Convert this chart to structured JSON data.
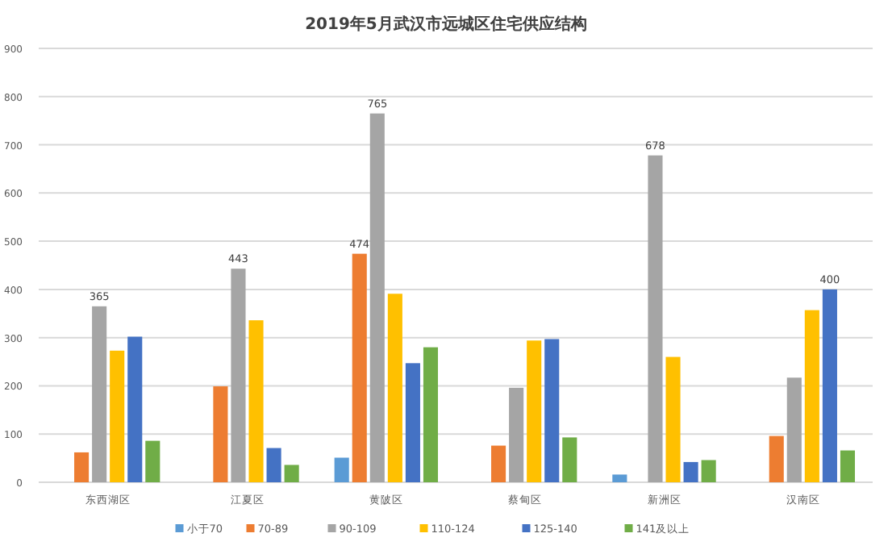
{
  "chart_data": {
    "type": "bar",
    "title": "2019年5月武汉市远城区住宅供应结构",
    "categories": [
      "东西湖区",
      "江夏区",
      "黄陂区",
      "蔡甸区",
      "新洲区",
      "汉南区"
    ],
    "series": [
      {
        "name": "小于70",
        "color": "#5b9bd5",
        "values": [
          null,
          null,
          51,
          null,
          16,
          null
        ]
      },
      {
        "name": "70-89",
        "color": "#ed7d31",
        "values": [
          62,
          199,
          474,
          76,
          null,
          96
        ],
        "value_labels": [
          null,
          null,
          "474",
          null,
          null,
          null
        ]
      },
      {
        "name": "90-109",
        "color": "#a5a5a5",
        "values": [
          365,
          443,
          765,
          196,
          678,
          217
        ],
        "value_labels": [
          "365",
          "443",
          "765",
          null,
          "678",
          null
        ]
      },
      {
        "name": "110-124",
        "color": "#ffc000",
        "values": [
          273,
          336,
          391,
          294,
          260,
          357
        ]
      },
      {
        "name": "125-140",
        "color": "#4472c4",
        "values": [
          302,
          71,
          247,
          297,
          42,
          400
        ],
        "value_labels": [
          null,
          null,
          null,
          null,
          null,
          "400"
        ]
      },
      {
        "name": "141及以上",
        "color": "#70ad47",
        "values": [
          86,
          36,
          280,
          93,
          46,
          66
        ]
      }
    ],
    "ylim": [
      0,
      900
    ],
    "yticks": [
      0,
      100,
      200,
      300,
      400,
      500,
      600,
      700,
      800,
      900
    ],
    "grid": "y",
    "legend": "bottom"
  }
}
